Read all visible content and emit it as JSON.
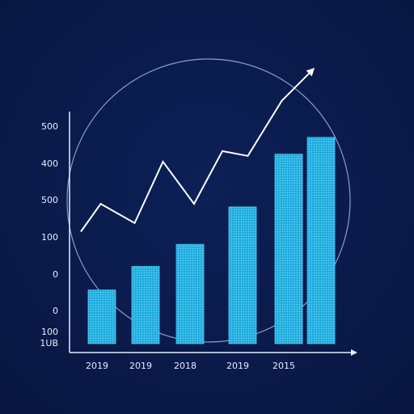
{
  "chart_data": {
    "type": "bar",
    "title": "",
    "xlabel": "",
    "ylabel": "",
    "categories": [
      "2019",
      "2019",
      "2018",
      "2019",
      "2015",
      ""
    ],
    "values": [
      112,
      161,
      207,
      285,
      395,
      430
    ],
    "y_tick_labels": [
      "500",
      "400",
      "500",
      "100",
      "0",
      "0",
      "100",
      "1UB"
    ],
    "trend_line": {
      "points": [
        [
          0.0,
          112
        ],
        [
          0.35,
          170
        ],
        [
          0.95,
          130
        ],
        [
          1.45,
          258
        ],
        [
          2.0,
          170
        ],
        [
          2.5,
          280
        ],
        [
          2.95,
          270
        ],
        [
          3.55,
          385
        ],
        [
          4.1,
          450
        ]
      ],
      "arrow": true
    },
    "grid": false,
    "legend": "none",
    "colors": {
      "background": "#0a1a4a",
      "bar_fill": "#29b6e6",
      "bar_dot": "#7fe3ff",
      "axis": "#e6eeff",
      "trend": "#ffffff",
      "circle": "#9fb6e8"
    }
  }
}
